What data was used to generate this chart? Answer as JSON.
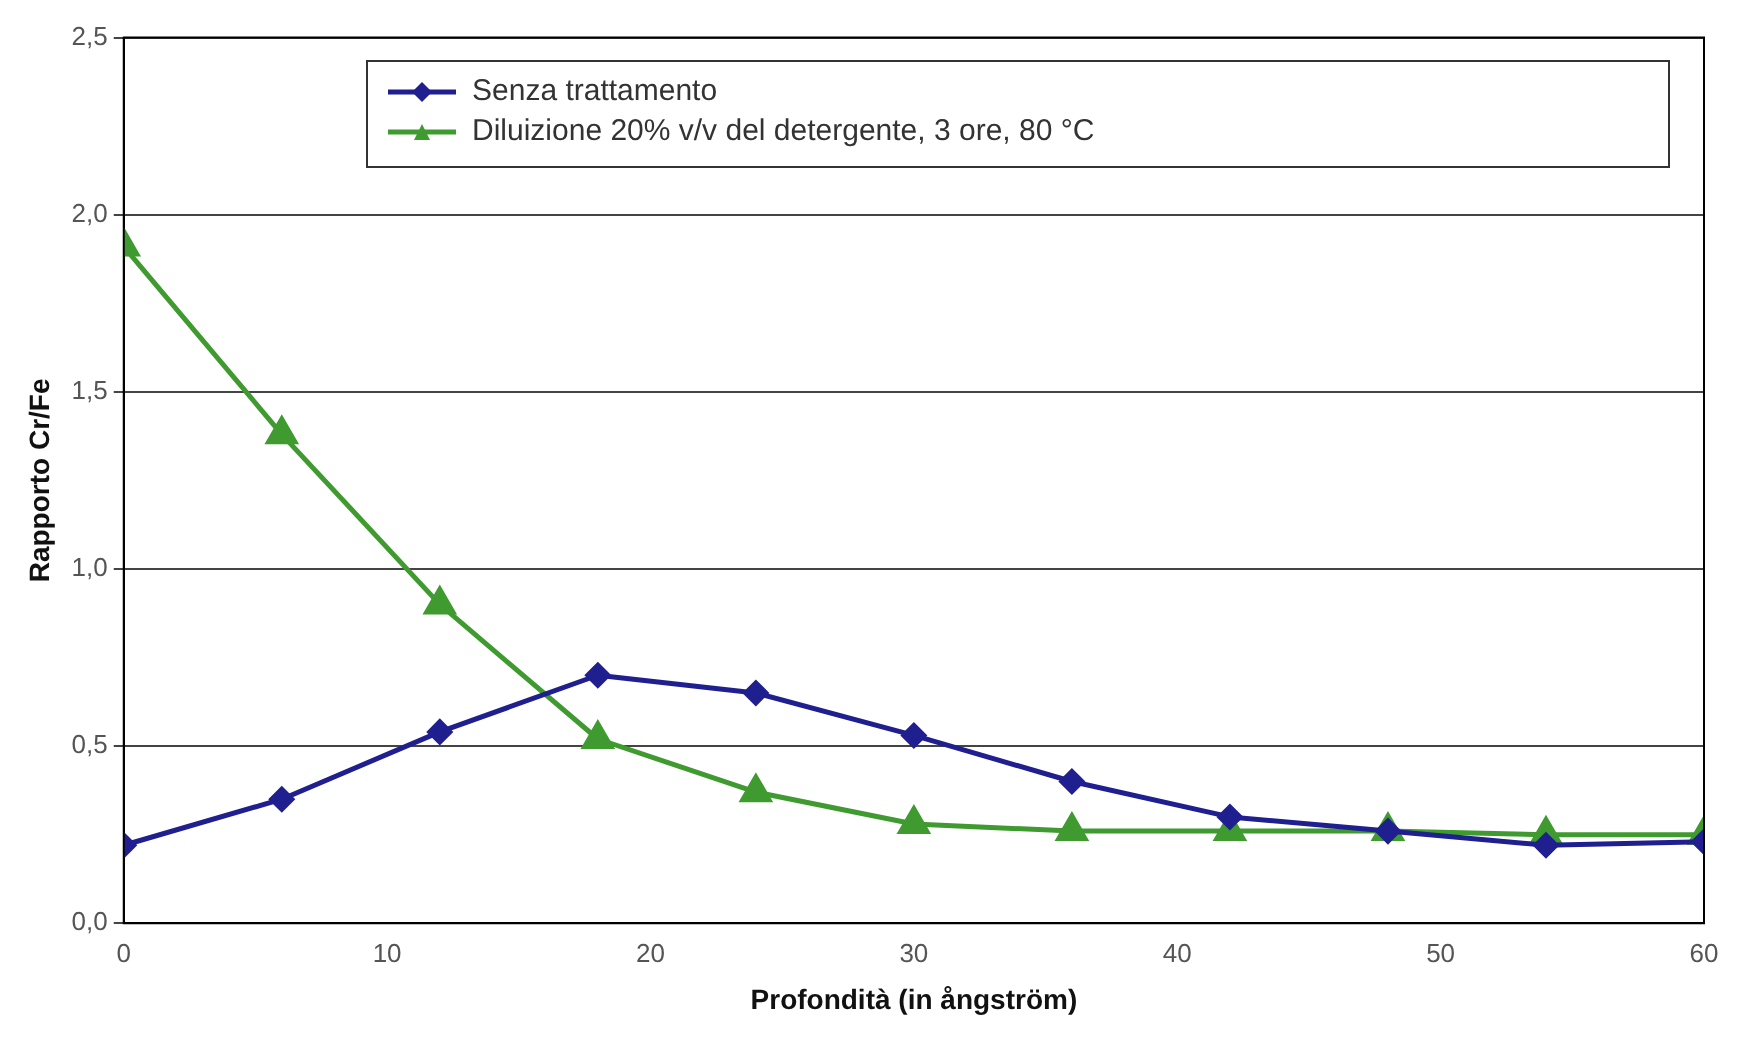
{
  "chart_data": {
    "type": "line",
    "xlabel": "Profondità (in ångström)",
    "ylabel": "Rapporto Cr/Fe",
    "x": [
      0,
      6,
      12,
      18,
      24,
      30,
      36,
      42,
      48,
      54,
      60
    ],
    "series": [
      {
        "name": "Senza trattamento",
        "color": "#1f1f8f",
        "marker": "diamond",
        "values": [
          0.22,
          0.35,
          0.54,
          0.7,
          0.65,
          0.53,
          0.4,
          0.3,
          0.26,
          0.22,
          0.23
        ]
      },
      {
        "name": "Diluizione 20% v/v del detergente, 3 ore, 80 °C",
        "color": "#3f9a2f",
        "marker": "triangle",
        "values": [
          1.91,
          1.38,
          0.9,
          0.52,
          0.37,
          0.28,
          0.26,
          0.26,
          0.26,
          0.25,
          0.25
        ]
      }
    ],
    "xlim": [
      0,
      60
    ],
    "xticks": [
      0,
      10,
      20,
      30,
      40,
      50,
      60
    ],
    "ylim": [
      0,
      2.5
    ],
    "yticks": [
      {
        "value": 0,
        "label": "0,0"
      },
      {
        "value": 0.5,
        "label": "0,5"
      },
      {
        "value": 1,
        "label": "1,0"
      },
      {
        "value": 1.5,
        "label": "1,5"
      },
      {
        "value": 2,
        "label": "2,0"
      },
      {
        "value": 2.5,
        "label": "2,5"
      }
    ],
    "grid": "y",
    "legend": "top",
    "line_style": "solid"
  }
}
